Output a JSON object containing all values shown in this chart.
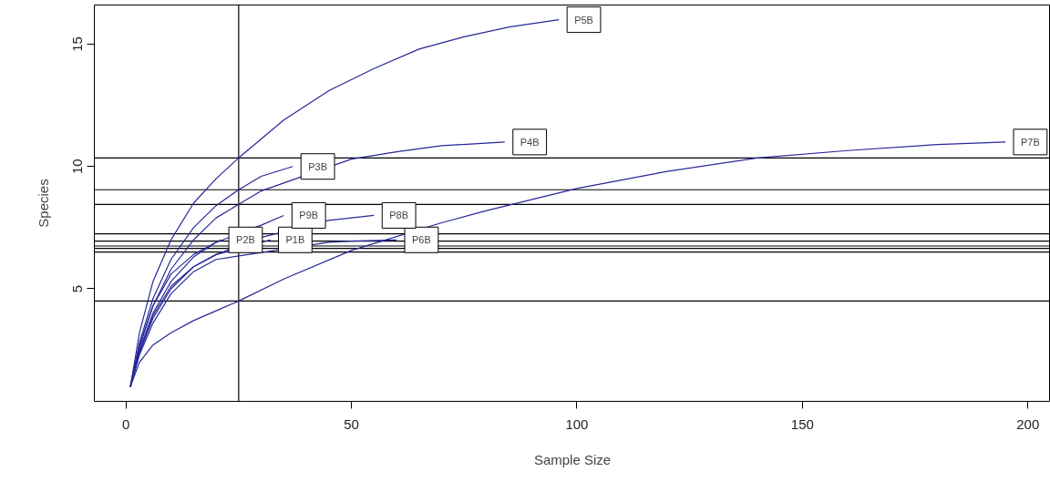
{
  "chart_data": {
    "type": "line",
    "xlabel": "Sample Size",
    "ylabel": "Species",
    "xlim": [
      -7,
      205
    ],
    "ylim": [
      0.4,
      16.6
    ],
    "xticks": [
      0,
      50,
      100,
      150,
      200
    ],
    "yticks": [
      5,
      10,
      15
    ],
    "grid": false,
    "marker": "none",
    "line_style": "solid",
    "legend": false,
    "series": [
      {
        "name": "P1B",
        "color": "#27279a",
        "x": [
          1,
          3,
          6,
          10,
          15,
          20,
          32
        ],
        "values": [
          1,
          2.4,
          3.9,
          5.1,
          5.9,
          6.4,
          7
        ]
      },
      {
        "name": "P2B",
        "color": "#27279a",
        "x": [
          1,
          3,
          6,
          10,
          15,
          21
        ],
        "values": [
          1,
          2.7,
          4.3,
          5.6,
          6.4,
          7
        ]
      },
      {
        "name": "P3B",
        "color": "#27279a",
        "x": [
          1,
          3,
          6,
          10,
          15,
          20,
          25,
          30,
          37
        ],
        "values": [
          1,
          2.8,
          4.6,
          6.2,
          7.5,
          8.4,
          9.05,
          9.6,
          10
        ]
      },
      {
        "name": "P4B",
        "color": "#27279a",
        "x": [
          1,
          3,
          6,
          10,
          15,
          20,
          25,
          30,
          50,
          60,
          70,
          84
        ],
        "values": [
          1,
          2.6,
          4.3,
          5.8,
          7,
          7.9,
          8.45,
          9,
          10.3,
          10.6,
          10.85,
          11
        ]
      },
      {
        "name": "P5B",
        "color": "#27279a",
        "x": [
          1,
          3,
          6,
          10,
          15,
          20,
          25,
          35,
          45,
          55,
          65,
          75,
          85,
          96
        ],
        "values": [
          1,
          3.2,
          5.3,
          7,
          8.5,
          9.5,
          10.35,
          11.9,
          13.1,
          14,
          14.8,
          15.3,
          15.7,
          16
        ]
      },
      {
        "name": "P6B",
        "color": "#27279a",
        "x": [
          1,
          3,
          6,
          10,
          15,
          20,
          45,
          50,
          60
        ],
        "values": [
          1,
          2.3,
          3.6,
          4.8,
          5.7,
          6.2,
          6.9,
          6.95,
          7
        ]
      },
      {
        "name": "P7B",
        "color": "#27279a",
        "x": [
          1,
          3,
          6,
          10,
          15,
          20,
          25,
          35,
          50,
          70,
          80,
          100,
          120,
          140,
          160,
          180,
          195
        ],
        "values": [
          1,
          2,
          2.7,
          3.2,
          3.7,
          4.1,
          4.5,
          5.4,
          6.57,
          7.7,
          8.2,
          9.1,
          9.8,
          10.35,
          10.65,
          10.9,
          11
        ]
      },
      {
        "name": "P8B",
        "color": "#27279a",
        "x": [
          1,
          3,
          6,
          10,
          15,
          20,
          30,
          45,
          55
        ],
        "values": [
          1,
          2.4,
          3.8,
          5,
          5.9,
          6.4,
          7.1,
          7.8,
          8
        ]
      },
      {
        "name": "P9B",
        "color": "#27279a",
        "x": [
          1,
          3,
          6,
          10,
          15,
          20,
          30,
          35
        ],
        "values": [
          1,
          2.5,
          4,
          5.3,
          6.3,
          6.9,
          7.6,
          8
        ]
      }
    ],
    "ref_lines": [
      {
        "axis": "x",
        "value": 25,
        "color": "#000000"
      },
      {
        "axis": "y",
        "value": 10.35,
        "color": "#000000"
      },
      {
        "axis": "y",
        "value": 9.05,
        "color": "#000000"
      },
      {
        "axis": "y",
        "value": 8.45,
        "color": "#000000"
      },
      {
        "axis": "y",
        "value": 7.25,
        "color": "#000000"
      },
      {
        "axis": "y",
        "value": 6.95,
        "color": "#000000"
      },
      {
        "axis": "y",
        "value": 6.75,
        "color": "#000000"
      },
      {
        "axis": "y",
        "value": 6.65,
        "color": "#000000"
      },
      {
        "axis": "y",
        "value": 6.5,
        "color": "#000000"
      },
      {
        "axis": "y",
        "value": 4.5,
        "color": "#000000"
      }
    ]
  }
}
